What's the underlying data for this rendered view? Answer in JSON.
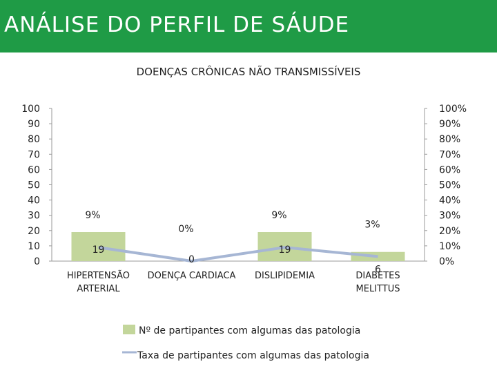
{
  "header": {
    "title": "ANÁLISE DO PERFIL DE SÁUDE",
    "bg_color": "#1f9b46"
  },
  "chart_data": {
    "type": "bar",
    "title": "DOENÇAS CRÔNICAS NÃO TRANSMISSÍVEIS",
    "categories": [
      "HIPERTENSÃO ARTERIAL",
      "DOENÇA CARDIACA",
      "DISLIPIDEMIA",
      "DIABETES MELITTUS"
    ],
    "series": [
      {
        "name": "Nº de partipantes com algumas das patologia",
        "type": "bar",
        "axis": "left",
        "values": [
          19,
          0,
          19,
          6
        ],
        "labels": [
          "19",
          "0",
          "19",
          "6"
        ],
        "color": "#c3d69b"
      },
      {
        "name": "Taxa de partipantes com algumas das patologia",
        "type": "line",
        "axis": "right",
        "values": [
          9,
          0,
          9,
          3
        ],
        "labels": [
          "9%",
          "0%",
          "9%",
          "3%"
        ],
        "color": "#a6b6d4"
      }
    ],
    "y_left": {
      "ylim": [
        0,
        100
      ],
      "ticks": [
        "0",
        "10",
        "20",
        "30",
        "40",
        "50",
        "60",
        "70",
        "80",
        "90",
        "100"
      ]
    },
    "y_right": {
      "ylim": [
        0,
        100
      ],
      "ticks": [
        "0%",
        "10%",
        "20%",
        "30%",
        "40%",
        "50%",
        "60%",
        "70%",
        "80%",
        "90%",
        "100%"
      ]
    },
    "legend_position": "bottom",
    "grid": false
  }
}
